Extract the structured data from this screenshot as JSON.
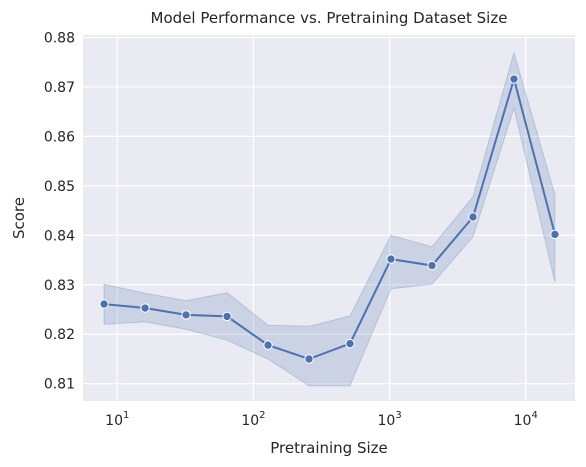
{
  "chart_data": {
    "type": "line",
    "title": "Model Performance vs. Pretraining Dataset Size",
    "xlabel": "Pretraining Size",
    "ylabel": "Score",
    "x_scale": "log",
    "x_ticks": [
      {
        "base": "10",
        "exp": "1",
        "value": 10
      },
      {
        "base": "10",
        "exp": "2",
        "value": 100
      },
      {
        "base": "10",
        "exp": "3",
        "value": 1000
      },
      {
        "base": "10",
        "exp": "4",
        "value": 10000
      }
    ],
    "y_ticks": [
      "0.81",
      "0.82",
      "0.83",
      "0.84",
      "0.85",
      "0.86",
      "0.87",
      "0.88"
    ],
    "xlim": [
      5.6,
      23000
    ],
    "ylim": [
      0.8065,
      0.8805
    ],
    "grid": true,
    "series": [
      {
        "x": [
          8,
          16,
          32,
          64,
          128,
          256,
          512,
          1024,
          2048,
          4096,
          8192,
          16384
        ],
        "y": [
          0.8261,
          0.8253,
          0.8239,
          0.8236,
          0.8178,
          0.815,
          0.8181,
          0.8352,
          0.8339,
          0.8437,
          0.8716,
          0.8402
        ],
        "ci_low": [
          0.822,
          0.8225,
          0.821,
          0.8188,
          0.815,
          0.8096,
          0.8096,
          0.8292,
          0.8301,
          0.8397,
          0.8657,
          0.8305
        ],
        "ci_high": [
          0.8301,
          0.8283,
          0.8268,
          0.8284,
          0.8218,
          0.8216,
          0.8237,
          0.84,
          0.8377,
          0.8478,
          0.8769,
          0.8482
        ]
      }
    ],
    "colors": {
      "line": "#4c72b0",
      "band": "#4c72b0",
      "plot_bg": "#eaeaf2",
      "grid": "#ffffff"
    }
  }
}
